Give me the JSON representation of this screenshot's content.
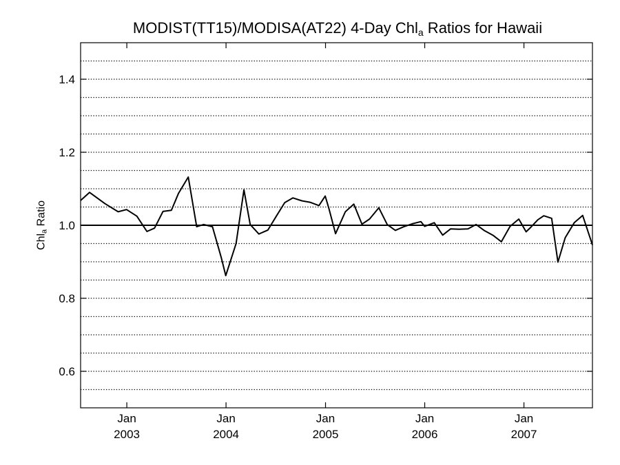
{
  "chart_data": {
    "type": "line",
    "title": {
      "main": "MODIST(TT15)/MODISA(AT22) 4-Day Chl",
      "sub": "a",
      "suffix": " Ratios for Hawaii"
    },
    "ylabel": {
      "main": "Chl",
      "sub": "a",
      "suffix": " Ratio"
    },
    "xlim": [
      "2002-07-15",
      "2007-09-10"
    ],
    "ylim": [
      0.5,
      1.5
    ],
    "yticks": [
      {
        "value": 0.6,
        "label": "0.6"
      },
      {
        "value": 0.8,
        "label": "0.8"
      },
      {
        "value": 1.0,
        "label": "1.0"
      },
      {
        "value": 1.2,
        "label": "1.2"
      },
      {
        "value": 1.4,
        "label": "1.4"
      }
    ],
    "xticks": [
      {
        "date": "2003-01-01",
        "month": "Jan",
        "year": "2003"
      },
      {
        "date": "2004-01-01",
        "month": "Jan",
        "year": "2004"
      },
      {
        "date": "2005-01-01",
        "month": "Jan",
        "year": "2005"
      },
      {
        "date": "2006-01-01",
        "month": "Jan",
        "year": "2006"
      },
      {
        "date": "2007-01-01",
        "month": "Jan",
        "year": "2007"
      }
    ],
    "grid": {
      "horizontal": true,
      "style": "dotted",
      "step": 0.05
    },
    "reference_line": 1.0,
    "series": [
      {
        "color": "#000000",
        "x": [
          "2002-07-15",
          "2002-08-17",
          "2002-10-13",
          "2002-11-30",
          "2002-12-31",
          "2003-02-07",
          "2003-03-16",
          "2003-04-13",
          "2003-05-14",
          "2003-06-14",
          "2003-07-10",
          "2003-08-15",
          "2003-09-15",
          "2003-10-10",
          "2003-11-12",
          "2003-12-15",
          "2003-12-31",
          "2004-02-07",
          "2004-03-07",
          "2004-03-30",
          "2004-05-01",
          "2004-06-03",
          "2004-07-04",
          "2004-08-04",
          "2004-09-03",
          "2004-10-06",
          "2004-11-05",
          "2004-12-08",
          "2004-12-31",
          "2005-01-14",
          "2005-02-07",
          "2005-03-15",
          "2005-04-15",
          "2005-05-15",
          "2005-06-12",
          "2005-07-16",
          "2005-08-16",
          "2005-09-15",
          "2005-10-16",
          "2005-11-16",
          "2005-12-18",
          "2006-01-01",
          "2006-02-05",
          "2006-03-08",
          "2006-04-06",
          "2006-05-07",
          "2006-06-09",
          "2006-07-09",
          "2006-08-09",
          "2006-09-10",
          "2006-10-10",
          "2006-11-11",
          "2006-12-13",
          "2007-01-09",
          "2007-01-27",
          "2007-02-21",
          "2007-03-15",
          "2007-04-13",
          "2007-05-06",
          "2007-06-02",
          "2007-07-05",
          "2007-08-05",
          "2007-09-10"
        ],
        "y": [
          1.068,
          1.09,
          1.059,
          1.037,
          1.043,
          1.025,
          0.983,
          0.992,
          1.038,
          1.041,
          1.087,
          1.132,
          0.996,
          1.002,
          0.996,
          0.91,
          0.862,
          0.95,
          1.097,
          1.002,
          0.976,
          0.987,
          1.025,
          1.062,
          1.075,
          1.067,
          1.063,
          1.054,
          1.08,
          1.045,
          0.977,
          1.037,
          1.058,
          1.003,
          1.017,
          1.048,
          1.002,
          0.986,
          0.996,
          1.004,
          1.01,
          0.997,
          1.007,
          0.973,
          0.99,
          0.989,
          0.99,
          1.002,
          0.985,
          0.972,
          0.955,
          0.997,
          1.017,
          0.982,
          0.995,
          1.015,
          1.026,
          1.019,
          0.899,
          0.966,
          1.007,
          1.027,
          0.946
        ]
      }
    ]
  }
}
